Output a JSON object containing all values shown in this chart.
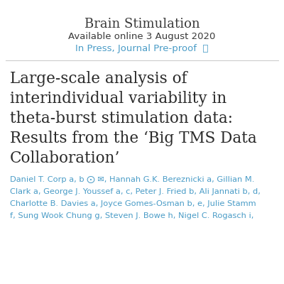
{
  "background_color": "#ffffff",
  "journal_name": "Brain Stimulation",
  "journal_name_fontsize": 13,
  "journal_name_color": "#3a3a3a",
  "available_online": "Available online 3 August 2020",
  "available_online_fontsize": 9.5,
  "available_online_color": "#3a3a3a",
  "in_press": "In Press, Journal Pre-proof  ⓗ",
  "in_press_fontsize": 9.5,
  "in_press_color": "#4a9cc7",
  "separator_color": "#cccccc",
  "title_lines": [
    "Large-scale analysis of",
    "interindividual variability in",
    "theta-burst stimulation data:",
    "Results from the ‘Big TMS Data",
    "Collaboration’"
  ],
  "title_fontsize": 15.5,
  "title_color": "#2a2a2a",
  "authors_lines": [
    "Daniel T. Corp a, b ⨀ ✉, Hannah G.K. Bereznicki a, Gillian M.",
    "Clark a, George J. Youssef a, c, Peter J. Fried b, Ali Jannati b, d,",
    "Charlotte B. Davies a, Joyce Gomes-Osman b, e, Julie Stamm",
    "f, Sung Wook Chung g, Steven J. Bowe h, Nigel C. Rogasch i,"
  ],
  "authors_fontsize": 8.2,
  "authors_color": "#4a9cc7"
}
